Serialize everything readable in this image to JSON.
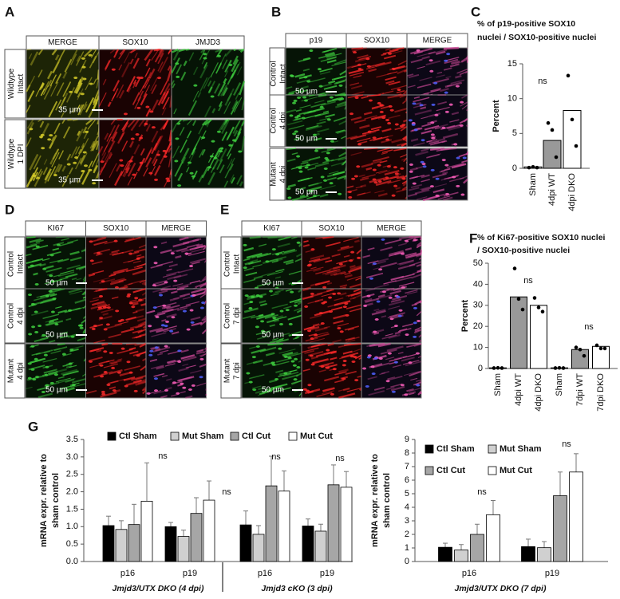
{
  "panels": [
    {
      "label": "A",
      "columns": [
        "MERGE",
        "SOX10",
        "JMJD3"
      ],
      "rows": [
        [
          "Wildtype",
          "Intact"
        ],
        [
          "Wildtype",
          "1 DPI"
        ]
      ],
      "scale_bars": [
        "35 µm",
        "35 µm"
      ]
    },
    {
      "label": "B",
      "columns": [
        "p19",
        "SOX10",
        "MERGE"
      ],
      "rows": [
        [
          "Control",
          "Intact"
        ],
        [
          "Control",
          "4 dpi"
        ],
        [
          "Mutant",
          "4 dpi"
        ]
      ],
      "scale_bars": [
        "50 µm",
        "50 µm",
        "50 µm"
      ]
    },
    {
      "label": "D",
      "columns": [
        "KI67",
        "SOX10",
        "MERGE"
      ],
      "rows": [
        [
          "Control",
          "Intact"
        ],
        [
          "Control",
          "4 dpi"
        ],
        [
          "Mutant",
          "4 dpi"
        ]
      ],
      "scale_bars": [
        "50 µm",
        "50 µm",
        "50 µm"
      ]
    },
    {
      "label": "E",
      "columns": [
        "KI67",
        "SOX10",
        "MERGE"
      ],
      "rows": [
        [
          "Control",
          "Intact"
        ],
        [
          "Control",
          "7 dpi"
        ],
        [
          "Mutant",
          "7 dpi"
        ]
      ],
      "scale_bars": [
        "50 µm",
        "50 µm",
        "50 µm"
      ]
    }
  ],
  "chart_data": [
    {
      "type": "bar",
      "panel": "C",
      "title": [
        "% of p19-positive SOX10",
        "nuclei / SOX10-positive nuclei"
      ],
      "categories": [
        "Sham",
        "4dpi WT",
        "4dpi DKO"
      ],
      "values": [
        0.2,
        4,
        8.3
      ],
      "colors": [
        "#ffffff",
        "#999999",
        "#ffffff"
      ],
      "points": [
        [
          0.1,
          0.2,
          0.1
        ],
        [
          6.5,
          5.5,
          1.6
        ],
        [
          13.3,
          7,
          3.2
        ]
      ],
      "ylim": [
        0,
        15
      ],
      "yticks": [
        0,
        5,
        10,
        15
      ],
      "ylabel": "Percent",
      "annotations": [
        "ns"
      ]
    },
    {
      "type": "bar",
      "panel": "F",
      "title": [
        "% of Ki67-positive SOX10 nuclei",
        "/ SOX10-positive nuclei"
      ],
      "categories": [
        "Sham",
        "4dpi WT",
        "4dpi DKO",
        "Sham",
        "7dpi WT",
        "7dpi DKO"
      ],
      "values": [
        0.3,
        34,
        30,
        0.3,
        9,
        10.5
      ],
      "colors": [
        "#ffffff",
        "#999999",
        "#ffffff",
        "#ffffff",
        "#999999",
        "#ffffff"
      ],
      "points": [
        [
          0.2,
          0.3,
          0.2
        ],
        [
          47.5,
          33,
          28
        ],
        [
          33.5,
          29,
          27
        ],
        [
          0.2,
          0.3,
          0.2
        ],
        [
          10,
          9,
          6
        ],
        [
          11,
          9.5,
          9.5
        ]
      ],
      "ylim": [
        0,
        50
      ],
      "yticks": [
        0,
        10,
        20,
        30,
        40,
        50
      ],
      "ylabel": "Percent",
      "annotations": [
        "ns",
        "ns"
      ]
    },
    {
      "type": "grouped_bar",
      "panel": "G",
      "categories": [
        "p16",
        "p19",
        "p16",
        "p19"
      ],
      "group_labels": [
        "Jmjd3/UTX DKO (4 dpi)",
        "Jmjd3 cKO (3 dpi)"
      ],
      "series": [
        {
          "name": "Ctl Sham",
          "color": "#000000",
          "values": [
            1.03,
            1.0,
            1.05,
            1.02
          ],
          "errors": [
            0.27,
            0.12,
            0.4,
            0.2
          ]
        },
        {
          "name": "Mut Sham",
          "color": "#d0d0d0",
          "values": [
            0.92,
            0.72,
            0.78,
            0.87
          ],
          "errors": [
            0.25,
            0.18,
            0.25,
            0.2
          ]
        },
        {
          "name": "Ctl Cut",
          "color": "#a6a6a6",
          "values": [
            1.06,
            1.38,
            2.17,
            2.2
          ],
          "errors": [
            0.58,
            0.45,
            0.85,
            0.57
          ]
        },
        {
          "name": "Mut Cut",
          "color": "#ffffff",
          "values": [
            1.73,
            1.76,
            2.02,
            2.13
          ],
          "errors": [
            1.1,
            0.55,
            0.58,
            0.45
          ]
        }
      ],
      "ylim": [
        0,
        3.5
      ],
      "yticks": [
        {
          "value": 0,
          "label": "0.0"
        },
        {
          "value": 0.5,
          "label": "0.5"
        },
        {
          "value": 1,
          "label": "1.0"
        },
        {
          "value": 1.5,
          "label": "1.5"
        },
        {
          "value": 2,
          "label": "2.0"
        },
        {
          "value": 2.5,
          "label": "2.5"
        },
        {
          "value": 3,
          "label": "3.0"
        },
        {
          "value": 3.5,
          "label": "3.5"
        }
      ],
      "ylabel": [
        "mRNA expr. relative to",
        "sham control"
      ],
      "annotations": [
        "ns",
        "ns",
        "ns",
        "ns"
      ]
    },
    {
      "type": "grouped_bar",
      "categories": [
        "p16",
        "p19"
      ],
      "group_labels": [
        "Jmjd3/UTX DKO (7 dpi)"
      ],
      "series": [
        {
          "name": "Ctl Sham",
          "color": "#000000",
          "values": [
            1.05,
            1.1
          ],
          "errors": [
            0.3,
            0.55
          ]
        },
        {
          "name": "Mut Sham",
          "color": "#d0d0d0",
          "values": [
            0.85,
            1.02
          ],
          "errors": [
            0.4,
            0.45
          ]
        },
        {
          "name": "Ctl Cut",
          "color": "#a6a6a6",
          "values": [
            2.0,
            4.85
          ],
          "errors": [
            0.75,
            1.75
          ]
        },
        {
          "name": "Mut Cut",
          "color": "#ffffff",
          "values": [
            3.45,
            6.6
          ],
          "errors": [
            1.05,
            1.35
          ]
        }
      ],
      "ylim": [
        0,
        9
      ],
      "yticks": [
        0,
        1,
        2,
        3,
        4,
        5,
        6,
        7,
        8,
        9
      ],
      "ylabel": [
        "mRNA expr. relative to",
        "sham control"
      ],
      "annotations": [
        "ns",
        "ns"
      ]
    }
  ]
}
